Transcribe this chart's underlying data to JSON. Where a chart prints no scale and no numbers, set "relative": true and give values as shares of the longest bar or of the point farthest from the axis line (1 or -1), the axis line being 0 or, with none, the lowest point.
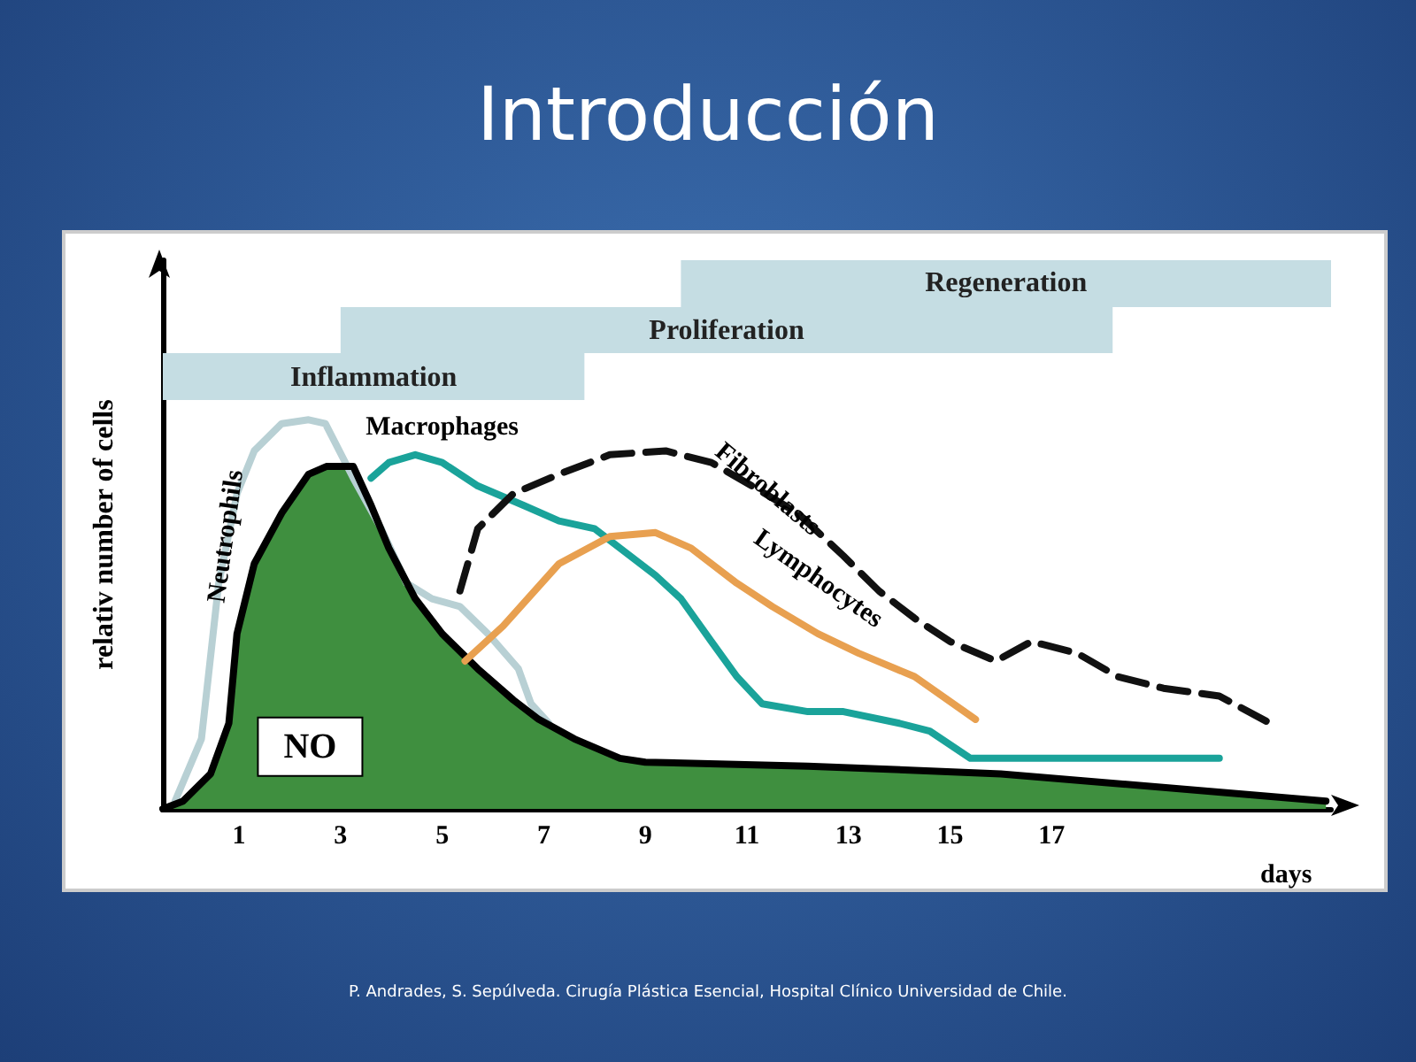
{
  "chart_data": {
    "type": "line",
    "title": "Introducción",
    "xlabel": "days",
    "ylabel": "relativ number of cells",
    "relative": true,
    "marker": "none",
    "xlim": [
      -0.5,
      22.5
    ],
    "xticks": [
      1,
      3,
      5,
      7,
      9,
      11,
      13,
      15,
      17
    ],
    "annotations": [
      "P. Andrades, S. Sepúlveda. Cirugía Plástica Esencial, Hospital Clínico Universidad de Chile."
    ],
    "bands": [
      {
        "axis": "x",
        "from": -0.5,
        "to": 7.8,
        "label": "Inflammation",
        "color": "#c5dde3"
      },
      {
        "axis": "x",
        "from": 3.0,
        "to": 18.2,
        "label": "Proliferation",
        "color": "#c5dde3"
      },
      {
        "axis": "x",
        "from": 9.7,
        "to": 22.5,
        "label": "Regeneration",
        "color": "#c5dde3"
      }
    ],
    "series": [
      {
        "name": "Neutrophils",
        "color": "#b8d0d4",
        "x": [
          -0.26,
          0.26,
          0.6,
          0.96,
          1.3,
          1.84,
          2.37,
          2.7,
          3.25,
          3.8,
          4.3,
          4.8,
          5.35,
          5.9,
          6.5,
          6.75,
          7.1
        ],
        "values": [
          0.02,
          0.18,
          0.58,
          0.81,
          0.92,
          0.99,
          1.0,
          0.99,
          0.85,
          0.72,
          0.58,
          0.54,
          0.52,
          0.45,
          0.36,
          0.27,
          0.22
        ]
      },
      {
        "name": "Macrophages",
        "color": "#1aa39a",
        "x": [
          3.6,
          3.95,
          4.47,
          5.0,
          5.7,
          6.6,
          7.3,
          8.0,
          8.7,
          9.2,
          9.7,
          10.3,
          10.8,
          11.3,
          12.2,
          12.9,
          14.0,
          14.6,
          15.4,
          16.0,
          17.5,
          20.3
        ],
        "values": [
          0.85,
          0.89,
          0.91,
          0.89,
          0.83,
          0.78,
          0.74,
          0.72,
          0.65,
          0.6,
          0.54,
          0.43,
          0.34,
          0.27,
          0.25,
          0.25,
          0.22,
          0.2,
          0.13,
          0.13,
          0.13,
          0.13
        ]
      },
      {
        "name": "NO",
        "type": "area",
        "color": "#3f8f3f",
        "x": [
          -0.5,
          -0.1,
          0.44,
          0.8,
          0.96,
          1.3,
          1.84,
          2.37,
          2.72,
          3.25,
          3.6,
          3.95,
          4.47,
          5.0,
          5.7,
          6.4,
          6.9,
          7.6,
          8.5,
          9.0,
          12.2,
          16.0,
          22.4
        ],
        "values": [
          0,
          0.02,
          0.09,
          0.22,
          0.45,
          0.63,
          0.76,
          0.86,
          0.88,
          0.88,
          0.78,
          0.67,
          0.54,
          0.45,
          0.36,
          0.28,
          0.23,
          0.18,
          0.13,
          0.12,
          0.11,
          0.09,
          0.02
        ]
      },
      {
        "name": "Fibroblasts",
        "color": "#111111",
        "line_style": "dashed",
        "x": [
          5.35,
          5.7,
          6.4,
          7.3,
          8.3,
          9.4,
          10.3,
          11.1,
          12.0,
          12.9,
          13.6,
          14.3,
          15.0,
          15.9,
          16.6,
          17.5,
          18.3,
          19.2,
          20.3,
          21.3
        ],
        "values": [
          0.56,
          0.72,
          0.81,
          0.86,
          0.91,
          0.92,
          0.89,
          0.83,
          0.76,
          0.65,
          0.56,
          0.49,
          0.43,
          0.38,
          0.43,
          0.4,
          0.34,
          0.31,
          0.29,
          0.22
        ]
      },
      {
        "name": "Lymphocytes",
        "color": "#e8a050",
        "x": [
          5.45,
          6.2,
          7.3,
          8.3,
          9.2,
          9.9,
          10.8,
          11.5,
          12.4,
          13.2,
          14.3,
          15.5
        ],
        "values": [
          0.38,
          0.47,
          0.63,
          0.7,
          0.71,
          0.67,
          0.58,
          0.52,
          0.45,
          0.4,
          0.34,
          0.23
        ]
      }
    ]
  }
}
